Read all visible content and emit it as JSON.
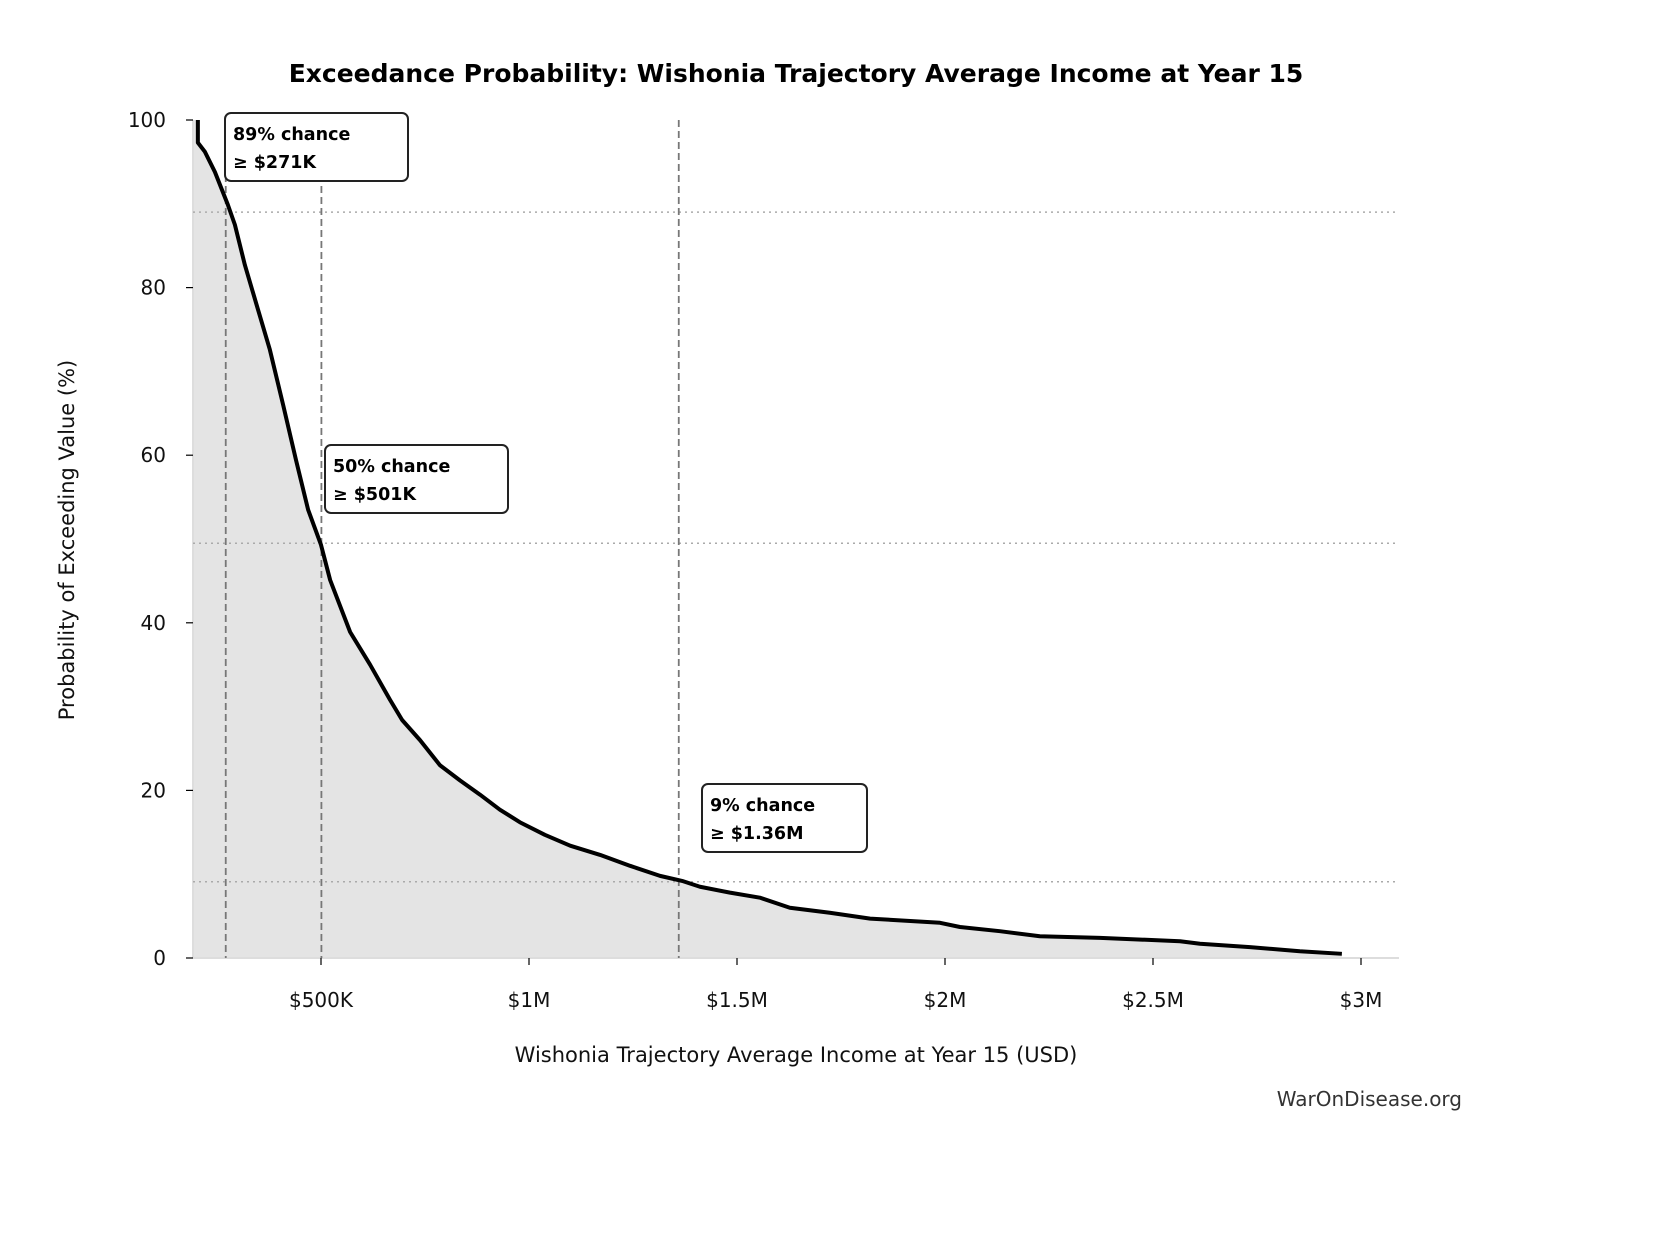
{
  "chart_data": {
    "type": "area",
    "title": "Exceedance Probability: Wishonia Trajectory Average Income at Year 15",
    "xlabel": "Wishonia Trajectory Average Income at Year 15 (USD)",
    "ylabel": "Probability of Exceeding Value (%)",
    "xlim": [
      192000,
      3090000
    ],
    "ylim": [
      0,
      100
    ],
    "x_ticks": [
      {
        "value": 500000,
        "label": "$500K"
      },
      {
        "value": 1000000,
        "label": "$1M"
      },
      {
        "value": 1500000,
        "label": "$1.5M"
      },
      {
        "value": 2000000,
        "label": "$2M"
      },
      {
        "value": 2500000,
        "label": "$2.5M"
      },
      {
        "value": 3000000,
        "label": "$3M"
      }
    ],
    "y_ticks": [
      {
        "value": 0,
        "label": "0"
      },
      {
        "value": 20,
        "label": "20"
      },
      {
        "value": 40,
        "label": "40"
      },
      {
        "value": 60,
        "label": "60"
      },
      {
        "value": 80,
        "label": "80"
      },
      {
        "value": 100,
        "label": "100"
      }
    ],
    "grid": false,
    "colors": {
      "line": "#000000",
      "fill": "#e4e4e4",
      "reference": "#777777",
      "hline": "#aaaaaa"
    },
    "series": [
      {
        "x": [
          204000,
          204000,
          221000,
          245000,
          276000,
          293000,
          317000,
          349000,
          377000,
          409000,
          440000,
          469000,
          500000,
          522000,
          570000,
          618000,
          666000,
          695000,
          738000,
          786000,
          834000,
          882000,
          930000,
          978000,
          1038000,
          1099000,
          1171000,
          1243000,
          1315000,
          1368000,
          1411000,
          1483000,
          1555000,
          1627000,
          1723000,
          1820000,
          1988000,
          2036000,
          2132000,
          2228000,
          2373000,
          2565000,
          2613000,
          2733000,
          2853000,
          2954000
        ],
        "y": [
          100,
          97.3,
          96.2,
          93.8,
          89.9,
          87.5,
          82.7,
          77.3,
          72.6,
          66,
          59.4,
          53.5,
          49.3,
          45.1,
          38.9,
          35,
          30.8,
          28.4,
          26,
          23,
          21.2,
          19.5,
          17.7,
          16.2,
          14.7,
          13.4,
          12.3,
          11,
          9.8,
          9.2,
          8.5,
          7.8,
          7.2,
          6,
          5.4,
          4.7,
          4.2,
          3.7,
          3.2,
          2.6,
          2.4,
          2.0,
          1.7,
          1.3,
          0.8,
          0.5
        ]
      }
    ],
    "annotations": [
      {
        "x": 271000,
        "y": 89,
        "line1": "89% chance",
        "line2": "≥ $271K"
      },
      {
        "x": 501000,
        "y": 49.5,
        "line1": "50% chance",
        "line2": "≥ $501K"
      },
      {
        "x": 1360000,
        "y": 9.1,
        "line1": "9% chance",
        "line2": "≥ $1.36M"
      }
    ]
  },
  "watermark": "WarOnDisease.org"
}
